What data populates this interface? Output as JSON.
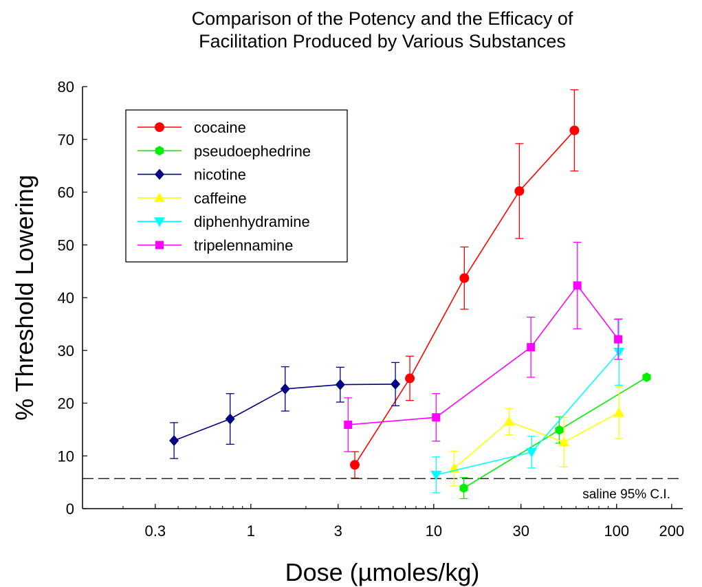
{
  "chart_data": {
    "type": "line",
    "title_lines": [
      "Comparison of the Potency and the Efficacy of",
      "Facilitation Produced by Various Substances"
    ],
    "xlabel": "Dose (µmoles/kg)",
    "ylabel": "% Threshold Lowering",
    "x_scale": "log",
    "xlim": [
      0.12,
      230
    ],
    "ylim": [
      0,
      80
    ],
    "x_ticks": [
      0.3,
      1,
      3,
      10,
      30,
      100,
      200
    ],
    "x_tick_labels": [
      "0.3",
      "1",
      "3",
      "10",
      "30",
      "100",
      "200"
    ],
    "y_ticks": [
      0,
      10,
      20,
      30,
      40,
      50,
      60,
      70,
      80
    ],
    "y_tick_labels": [
      "0",
      "10",
      "20",
      "30",
      "40",
      "50",
      "60",
      "70",
      "80"
    ],
    "grid": false,
    "legend_position": "top-left",
    "series": [
      {
        "name": "cocaine",
        "color": "#ff0000",
        "marker": "circle",
        "x": [
          3.7,
          7.4,
          14.7,
          29.4,
          58.8
        ],
        "y": [
          8.3,
          24.7,
          43.7,
          60.2,
          71.7
        ],
        "err": [
          2.5,
          4.2,
          5.9,
          9.0,
          7.7
        ]
      },
      {
        "name": "pseudoephedrine",
        "color": "#00ee00",
        "marker": "hexagon",
        "x": [
          14.6,
          48.6,
          146
        ],
        "y": [
          3.9,
          14.9,
          24.9
        ],
        "err": [
          2.0,
          2.5,
          0.0
        ]
      },
      {
        "name": "nicotine",
        "color": "#000080",
        "marker": "diamond",
        "x": [
          0.38,
          0.77,
          1.54,
          3.08,
          6.17
        ],
        "y": [
          12.9,
          17.0,
          22.7,
          23.5,
          23.6
        ],
        "err": [
          3.4,
          4.8,
          4.2,
          3.3,
          4.1
        ]
      },
      {
        "name": "caffeine",
        "color": "#ffff00",
        "marker": "triangle-up",
        "x": [
          12.9,
          25.8,
          51.5,
          103
        ],
        "y": [
          7.6,
          16.5,
          12.6,
          18.2
        ],
        "err": [
          3.3,
          2.5,
          4.7,
          4.9
        ]
      },
      {
        "name": "diphenhydramine",
        "color": "#00ffff",
        "marker": "triangle-down",
        "x": [
          10.3,
          34.3,
          103
        ],
        "y": [
          6.4,
          10.7,
          29.7
        ],
        "err": [
          3.4,
          3.0,
          6.3
        ]
      },
      {
        "name": "tripelennamine",
        "color": "#ff00ff",
        "marker": "square",
        "x": [
          3.4,
          10.3,
          34.0,
          61.0,
          102
        ],
        "y": [
          15.9,
          17.3,
          30.6,
          42.3,
          32.1
        ],
        "err": [
          5.1,
          4.5,
          5.7,
          8.2,
          3.8
        ]
      }
    ],
    "reference_line": {
      "y": 5.7,
      "style": "dashed",
      "label": "saline 95% C.I."
    }
  }
}
